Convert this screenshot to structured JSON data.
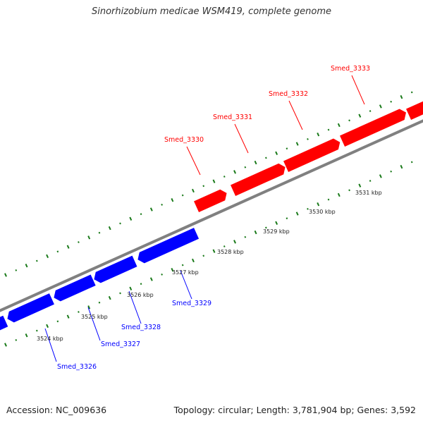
{
  "title": "Sinorhizobium medicae WSM419, complete genome",
  "footer": {
    "accession": "Accession: NC_009636",
    "stats": "Topology: circular; Length: 3,781,904 bp; Genes: 3,592"
  },
  "colors": {
    "forward_gene": "#ff0000",
    "reverse_gene": "#0000ff",
    "backbone": "#808080",
    "tick_marks": "#1a7a1a"
  },
  "forward_genes": [
    {
      "name": "Smed_3330"
    },
    {
      "name": "Smed_3331"
    },
    {
      "name": "Smed_3332"
    },
    {
      "name": "Smed_3333"
    }
  ],
  "reverse_genes": [
    {
      "name": "Smed_3326"
    },
    {
      "name": "Smed_3327"
    },
    {
      "name": "Smed_3328"
    },
    {
      "name": "Smed_3329"
    }
  ],
  "scale_labels": [
    "3524 kbp",
    "3525 kbp",
    "3526 kbp",
    "3527 kbp",
    "3528 kbp",
    "3529 kbp",
    "3530 kbp",
    "3531 kbp"
  ]
}
